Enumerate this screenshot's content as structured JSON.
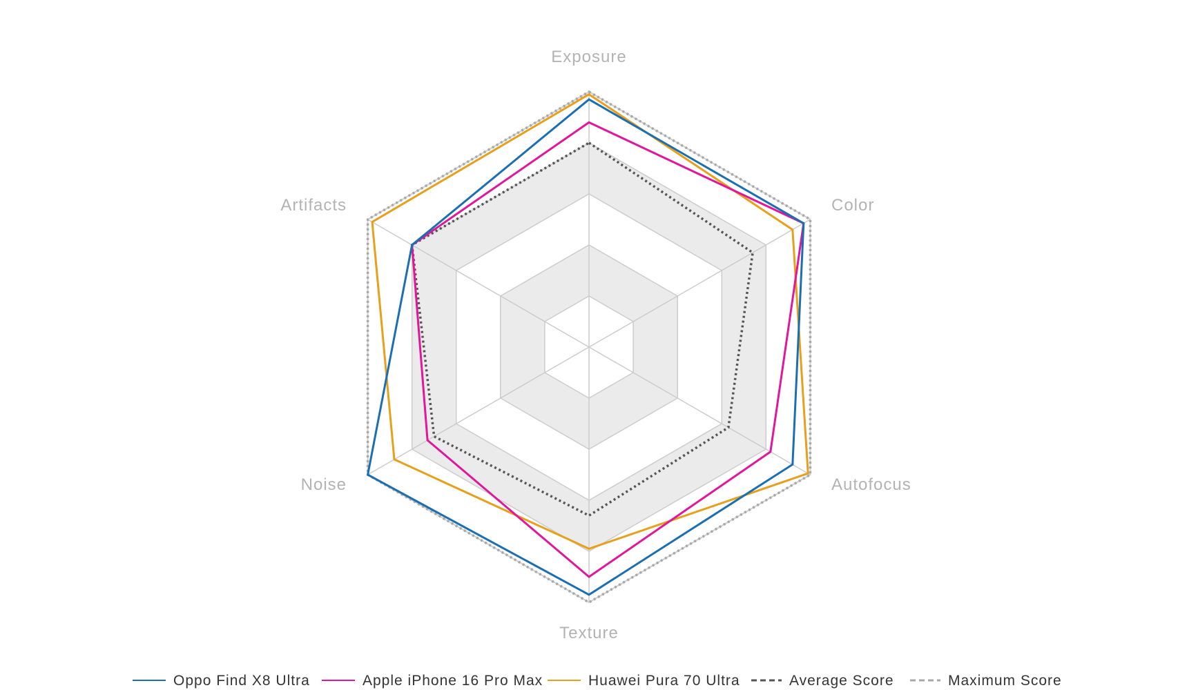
{
  "chart_data": {
    "type": "radar",
    "axes": [
      "Exposure",
      "Color",
      "Autofocus",
      "Texture",
      "Noise",
      "Artifacts"
    ],
    "range": [
      0,
      100
    ],
    "rings": 5,
    "series": [
      {
        "name": "Oppo Find X8 Ultra",
        "color": "#1a6fb3",
        "style": "solid",
        "values": [
          97,
          97,
          92,
          97,
          100,
          80
        ]
      },
      {
        "name": "Apple iPhone 16 Pro Max",
        "color": "#e0179b",
        "style": "solid",
        "values": [
          88,
          97,
          82,
          90,
          73,
          80
        ]
      },
      {
        "name": "Huawei Pura 70 Ultra",
        "color": "#e89f1b",
        "style": "solid",
        "values": [
          99,
          92,
          99,
          79,
          88,
          98
        ]
      },
      {
        "name": "Average Score",
        "color": "#555555",
        "style": "dotted",
        "values": [
          80,
          74,
          63,
          66,
          70,
          80
        ]
      },
      {
        "name": "Maximum Score",
        "color": "#a8a8a8",
        "style": "dotted",
        "values": [
          100,
          100,
          100,
          100,
          100,
          100
        ]
      }
    ],
    "legend_position": "bottom"
  }
}
